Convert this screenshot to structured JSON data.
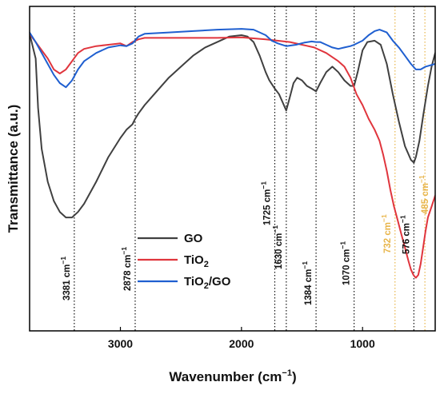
{
  "chart_data": {
    "type": "line",
    "xlabel": "Wavenumber (cm",
    "xlabel_sup": "−1",
    "xlabel_close": ")",
    "ylabel": "Transmittance (a.u.)",
    "xlim": [
      3750,
      400
    ],
    "x_reversed": true,
    "y_ticks_shown": false,
    "grid": false,
    "legend_position": "lower-center",
    "x_ticks": [
      {
        "value": 3000,
        "label": "3000"
      },
      {
        "value": 2000,
        "label": "2000"
      },
      {
        "value": 1000,
        "label": "1000"
      }
    ],
    "series": [
      {
        "name": "GO",
        "name_sub": "",
        "color": "#404040",
        "points": [
          [
            3750,
            0.03
          ],
          [
            3700,
            0.12
          ],
          [
            3680,
            0.3
          ],
          [
            3650,
            0.45
          ],
          [
            3600,
            0.57
          ],
          [
            3550,
            0.64
          ],
          [
            3500,
            0.68
          ],
          [
            3450,
            0.7
          ],
          [
            3400,
            0.7
          ],
          [
            3350,
            0.68
          ],
          [
            3300,
            0.65
          ],
          [
            3200,
            0.57
          ],
          [
            3100,
            0.48
          ],
          [
            3000,
            0.41
          ],
          [
            2950,
            0.38
          ],
          [
            2900,
            0.36
          ],
          [
            2878,
            0.34
          ],
          [
            2850,
            0.32
          ],
          [
            2800,
            0.29
          ],
          [
            2700,
            0.24
          ],
          [
            2600,
            0.19
          ],
          [
            2500,
            0.15
          ],
          [
            2400,
            0.11
          ],
          [
            2300,
            0.08
          ],
          [
            2200,
            0.06
          ],
          [
            2100,
            0.04
          ],
          [
            2000,
            0.035
          ],
          [
            1950,
            0.04
          ],
          [
            1900,
            0.06
          ],
          [
            1850,
            0.11
          ],
          [
            1800,
            0.17
          ],
          [
            1770,
            0.2
          ],
          [
            1725,
            0.23
          ],
          [
            1690,
            0.25
          ],
          [
            1660,
            0.28
          ],
          [
            1630,
            0.31
          ],
          [
            1600,
            0.26
          ],
          [
            1570,
            0.21
          ],
          [
            1540,
            0.19
          ],
          [
            1500,
            0.2
          ],
          [
            1460,
            0.22
          ],
          [
            1420,
            0.23
          ],
          [
            1384,
            0.24
          ],
          [
            1350,
            0.21
          ],
          [
            1300,
            0.17
          ],
          [
            1250,
            0.15
          ],
          [
            1200,
            0.17
          ],
          [
            1150,
            0.2
          ],
          [
            1100,
            0.22
          ],
          [
            1070,
            0.22
          ],
          [
            1040,
            0.17
          ],
          [
            1000,
            0.09
          ],
          [
            960,
            0.06
          ],
          [
            900,
            0.055
          ],
          [
            850,
            0.07
          ],
          [
            800,
            0.14
          ],
          [
            750,
            0.25
          ],
          [
            700,
            0.35
          ],
          [
            650,
            0.44
          ],
          [
            600,
            0.49
          ],
          [
            576,
            0.5
          ],
          [
            560,
            0.48
          ],
          [
            530,
            0.42
          ],
          [
            500,
            0.33
          ],
          [
            460,
            0.22
          ],
          [
            430,
            0.15
          ],
          [
            400,
            0.1
          ]
        ]
      },
      {
        "name": "TiO",
        "name_sub": "2",
        "color": "#e0353d",
        "points": [
          [
            3750,
            0.03
          ],
          [
            3700,
            0.06
          ],
          [
            3650,
            0.09
          ],
          [
            3600,
            0.12
          ],
          [
            3550,
            0.16
          ],
          [
            3500,
            0.175
          ],
          [
            3450,
            0.16
          ],
          [
            3400,
            0.13
          ],
          [
            3350,
            0.1
          ],
          [
            3300,
            0.085
          ],
          [
            3200,
            0.075
          ],
          [
            3100,
            0.07
          ],
          [
            3000,
            0.065
          ],
          [
            2950,
            0.075
          ],
          [
            2900,
            0.06
          ],
          [
            2850,
            0.05
          ],
          [
            2800,
            0.045
          ],
          [
            2600,
            0.045
          ],
          [
            2400,
            0.045
          ],
          [
            2200,
            0.045
          ],
          [
            2000,
            0.043
          ],
          [
            1800,
            0.05
          ],
          [
            1600,
            0.06
          ],
          [
            1500,
            0.07
          ],
          [
            1400,
            0.08
          ],
          [
            1300,
            0.1
          ],
          [
            1200,
            0.13
          ],
          [
            1150,
            0.15
          ],
          [
            1100,
            0.19
          ],
          [
            1050,
            0.25
          ],
          [
            1000,
            0.29
          ],
          [
            950,
            0.34
          ],
          [
            900,
            0.38
          ],
          [
            860,
            0.42
          ],
          [
            830,
            0.47
          ],
          [
            800,
            0.53
          ],
          [
            770,
            0.6
          ],
          [
            740,
            0.66
          ],
          [
            710,
            0.71
          ],
          [
            680,
            0.76
          ],
          [
            650,
            0.81
          ],
          [
            620,
            0.86
          ],
          [
            600,
            0.89
          ],
          [
            580,
            0.91
          ],
          [
            560,
            0.92
          ],
          [
            540,
            0.91
          ],
          [
            520,
            0.87
          ],
          [
            500,
            0.81
          ],
          [
            480,
            0.75
          ],
          [
            460,
            0.7
          ],
          [
            430,
            0.66
          ],
          [
            400,
            0.62
          ]
        ]
      },
      {
        "name": "TiO",
        "name_sub": "2",
        "name_tail": "/GO",
        "color": "#1f5fd0",
        "points": [
          [
            3750,
            0.025
          ],
          [
            3700,
            0.06
          ],
          [
            3650,
            0.1
          ],
          [
            3600,
            0.14
          ],
          [
            3550,
            0.18
          ],
          [
            3500,
            0.21
          ],
          [
            3450,
            0.225
          ],
          [
            3400,
            0.2
          ],
          [
            3350,
            0.16
          ],
          [
            3300,
            0.13
          ],
          [
            3200,
            0.1
          ],
          [
            3100,
            0.08
          ],
          [
            3000,
            0.072
          ],
          [
            2950,
            0.075
          ],
          [
            2900,
            0.065
          ],
          [
            2850,
            0.04
          ],
          [
            2800,
            0.03
          ],
          [
            2600,
            0.025
          ],
          [
            2400,
            0.02
          ],
          [
            2200,
            0.015
          ],
          [
            2000,
            0.012
          ],
          [
            1900,
            0.015
          ],
          [
            1800,
            0.035
          ],
          [
            1750,
            0.055
          ],
          [
            1700,
            0.065
          ],
          [
            1630,
            0.075
          ],
          [
            1550,
            0.07
          ],
          [
            1480,
            0.062
          ],
          [
            1420,
            0.058
          ],
          [
            1384,
            0.06
          ],
          [
            1350,
            0.06
          ],
          [
            1300,
            0.07
          ],
          [
            1250,
            0.08
          ],
          [
            1200,
            0.085
          ],
          [
            1150,
            0.08
          ],
          [
            1100,
            0.075
          ],
          [
            1070,
            0.07
          ],
          [
            1000,
            0.055
          ],
          [
            950,
            0.035
          ],
          [
            900,
            0.02
          ],
          [
            860,
            0.015
          ],
          [
            800,
            0.025
          ],
          [
            750,
            0.055
          ],
          [
            700,
            0.08
          ],
          [
            650,
            0.11
          ],
          [
            600,
            0.14
          ],
          [
            560,
            0.16
          ],
          [
            520,
            0.16
          ],
          [
            480,
            0.15
          ],
          [
            440,
            0.145
          ],
          [
            400,
            0.14
          ]
        ]
      }
    ],
    "peaks": [
      {
        "value": 3381,
        "label": "3381 cm",
        "sup": "−1",
        "color": "#111111"
      },
      {
        "value": 2878,
        "label": "2878 cm",
        "sup": "−1",
        "color": "#111111"
      },
      {
        "value": 1725,
        "label": "1725 cm",
        "sup": "−1",
        "color": "#111111"
      },
      {
        "value": 1630,
        "label": "1630 cm",
        "sup": "−1",
        "color": "#111111"
      },
      {
        "value": 1384,
        "label": "1384 cm",
        "sup": "−1",
        "color": "#111111"
      },
      {
        "value": 1070,
        "label": "1070 cm",
        "sup": "−1",
        "color": "#111111"
      },
      {
        "value": 732,
        "label": "732 cm",
        "sup": "−1",
        "color": "#e8b54a"
      },
      {
        "value": 576,
        "label": "576 cm",
        "sup": "−1",
        "color": "#111111"
      },
      {
        "value": 485,
        "label": "485 cm",
        "sup": "−1",
        "color": "#e8b54a"
      }
    ]
  }
}
